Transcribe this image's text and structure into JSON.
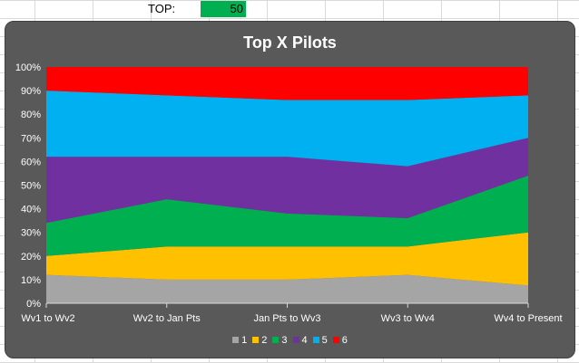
{
  "spreadsheet": {
    "top_label": "TOP:",
    "top_value": "50"
  },
  "chart_data": {
    "type": "area",
    "stacked": "percent",
    "title": "Top X Pilots",
    "categories": [
      "Wv1 to Wv2",
      "Wv2 to Jan Pts",
      "Jan Pts to Wv3",
      "Wv3 to Wv4",
      "Wv4 to Present"
    ],
    "ylim": [
      0,
      100
    ],
    "yticks": [
      "0%",
      "10%",
      "20%",
      "30%",
      "40%",
      "50%",
      "60%",
      "70%",
      "80%",
      "90%",
      "100%"
    ],
    "legend_position": "bottom",
    "series": [
      {
        "name": "1",
        "color": "#a5a5a5",
        "values": [
          12,
          10,
          10,
          12,
          7.5
        ]
      },
      {
        "name": "2",
        "color": "#ffc000",
        "values": [
          8,
          14,
          14,
          12,
          22.5
        ]
      },
      {
        "name": "3",
        "color": "#00b050",
        "values": [
          14,
          20,
          14,
          12,
          24
        ]
      },
      {
        "name": "4",
        "color": "#7030a0",
        "values": [
          28,
          18,
          24,
          22,
          16
        ]
      },
      {
        "name": "5",
        "color": "#00b0f0",
        "values": [
          28,
          26,
          24,
          28,
          18
        ]
      },
      {
        "name": "6",
        "color": "#ff0000",
        "values": [
          10,
          12,
          14,
          14,
          12
        ]
      }
    ]
  }
}
